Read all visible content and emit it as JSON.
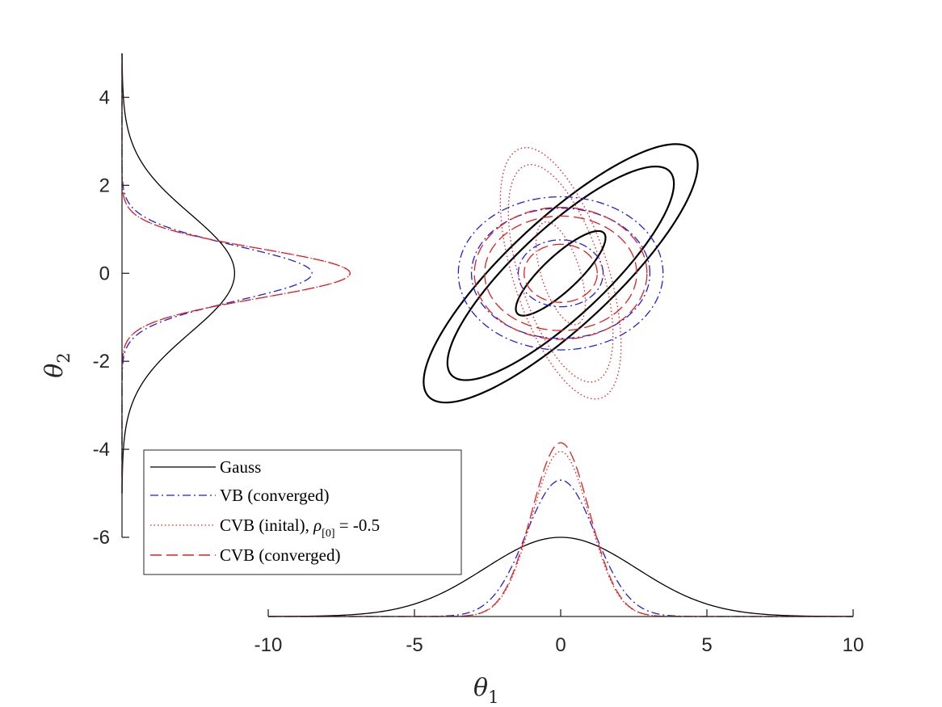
{
  "chart_data": {
    "type": "line",
    "xlabel": "θ",
    "xlabel_sub": "1",
    "ylabel": "θ",
    "ylabel_sub": "2",
    "xlim": [
      -15,
      10
    ],
    "ylim": [
      -7.8,
      5
    ],
    "xticks": [
      -10,
      -5,
      0,
      5,
      10
    ],
    "xtick_labels": [
      "-10",
      "-5",
      "0",
      "5",
      "10"
    ],
    "yticks": [
      -6,
      -4,
      -2,
      0,
      2,
      4
    ],
    "ytick_labels": [
      "-6",
      "-4",
      "-2",
      "0",
      "2",
      "4"
    ],
    "grid": false,
    "legend_position": "bottom-left",
    "series": [
      {
        "name": "Gauss",
        "color": "#000000",
        "style": "solid",
        "contours": [
          {
            "center": [
              0,
              0
            ],
            "rx": 1.75,
            "ry": 0.46,
            "angle_deg": 30.0
          },
          {
            "center": [
              0,
              0
            ],
            "rx": 4.42,
            "ry": 1.16,
            "angle_deg": 30.0
          },
          {
            "center": [
              0,
              0
            ],
            "rx": 5.35,
            "ry": 1.4,
            "angle_deg": 30.0
          }
        ],
        "marginal_x": {
          "mu": 0,
          "sigma": 2.6,
          "peak": 1.8
        },
        "marginal_y": {
          "mu": 0,
          "sigma": 1.35,
          "peak": 3.85
        }
      },
      {
        "name": "VB (converged)",
        "color": "#1f1fe0",
        "style": "dashdot",
        "contours": [
          {
            "center": [
              0,
              0
            ],
            "rx": 1.45,
            "ry": 0.76,
            "angle_deg": 0
          },
          {
            "center": [
              0,
              0
            ],
            "rx": 3.05,
            "ry": 1.48,
            "angle_deg": 0
          },
          {
            "center": [
              0,
              0
            ],
            "rx": 3.5,
            "ry": 1.74,
            "angle_deg": 0
          }
        ],
        "marginal_x": {
          "mu": 0,
          "sigma": 1.18,
          "peak": 3.1
        },
        "marginal_y": {
          "mu": 0,
          "sigma": 0.62,
          "peak": 6.5
        }
      },
      {
        "name": "CVB (inital), ρ̃[0] = -0.5",
        "color": "#e02020",
        "style": "dotted",
        "contours": [
          {
            "center": [
              0,
              0
            ],
            "rx": 1.3,
            "ry": 0.62,
            "angle_deg": -60
          },
          {
            "center": [
              0,
              0
            ],
            "rx": 2.75,
            "ry": 1.32,
            "angle_deg": -60
          },
          {
            "center": [
              0,
              0
            ],
            "rx": 3.18,
            "ry": 1.52,
            "angle_deg": -60
          }
        ],
        "marginal_x": {
          "mu": 0,
          "sigma": 0.98,
          "peak": 3.75
        },
        "marginal_y": {
          "mu": 0,
          "sigma": 0.56,
          "peak": 7.8
        }
      },
      {
        "name": "CVB (converged)",
        "color": "#e02020",
        "style": "dashed",
        "contours": [
          {
            "center": [
              0,
              0
            ],
            "rx": 1.25,
            "ry": 0.66,
            "angle_deg": 0
          },
          {
            "center": [
              0,
              0
            ],
            "rx": 2.6,
            "ry": 1.3,
            "angle_deg": 0
          },
          {
            "center": [
              0,
              0
            ],
            "rx": 2.95,
            "ry": 1.5,
            "angle_deg": 0
          }
        ],
        "marginal_x": {
          "mu": 0,
          "sigma": 0.98,
          "peak": 3.95
        },
        "marginal_y": {
          "mu": 0,
          "sigma": 0.56,
          "peak": 7.8
        }
      }
    ]
  },
  "legend": {
    "entries": [
      {
        "text": "Gauss"
      },
      {
        "text": "VB (converged)"
      },
      {
        "text": "CVB (inital), ",
        "rho": "ρ",
        "sub": "[0]",
        "tail": " = -0.5"
      },
      {
        "text": "CVB (converged)"
      }
    ]
  }
}
